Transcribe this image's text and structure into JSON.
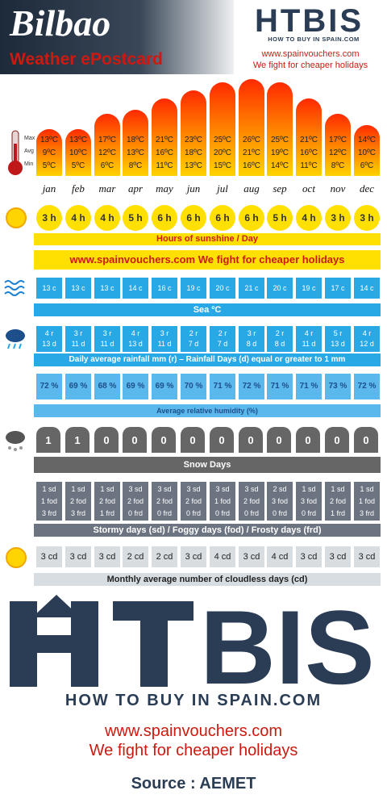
{
  "header": {
    "city": "Bilbao",
    "subtitle": "Weather ePostcard",
    "logo": "HTBIS",
    "logo_tagline": "HOW TO BUY IN SPAIN.COM",
    "url": "www.spainvouchers.com",
    "slogan": "We fight for cheaper holidays"
  },
  "temp_labels": {
    "max": "Max",
    "avg": "Avg",
    "min": "Min"
  },
  "chart_data": {
    "type": "table",
    "months": [
      "jan",
      "feb",
      "mar",
      "apr",
      "may",
      "jun",
      "jul",
      "aug",
      "sep",
      "oct",
      "nov",
      "dec"
    ],
    "temperature_c": {
      "max": [
        13,
        13,
        17,
        18,
        21,
        23,
        25,
        26,
        25,
        21,
        17,
        14
      ],
      "avg": [
        9,
        10,
        12,
        13,
        16,
        18,
        20,
        21,
        19,
        16,
        12,
        10
      ],
      "min": [
        5,
        5,
        6,
        8,
        11,
        13,
        15,
        16,
        14,
        11,
        8,
        6
      ],
      "max_text": [
        "13ºC",
        "13ºC",
        "17ºC",
        "18ºC",
        "21ºC",
        "23ºC",
        "25ºC",
        "26ºC",
        "25ºC",
        "21ºC",
        "17ºC",
        "14ºC"
      ],
      "avg_text": [
        "9ºC",
        "10ºC",
        "12ºC",
        "13ºC",
        "16ºC",
        "18ºC",
        "20ºC",
        "21ºC",
        "19ºC",
        "16ºC",
        "12ºC",
        "10ºC"
      ],
      "min_text": [
        "5ºC",
        "5ºC",
        "6ºC",
        "8ºC",
        "11ºC",
        "13ºC",
        "15ºC",
        "16ºC",
        "14ºC",
        "11ºC",
        "8ºC",
        "6ºC"
      ]
    },
    "sunshine_hours": [
      "3 h",
      "4 h",
      "4 h",
      "5 h",
      "6 h",
      "6 h",
      "6 h",
      "6 h",
      "5 h",
      "4 h",
      "3 h",
      "3 h"
    ],
    "sunshine_label": "Hours of sunshine / Day",
    "sea_temp": [
      "13 c",
      "13 c",
      "13 c",
      "14 c",
      "16 c",
      "19 c",
      "20 c",
      "21 c",
      "20 c",
      "19 c",
      "17 c",
      "14 c"
    ],
    "sea_label": "Sea ºC",
    "rainfall_mm": [
      "4 r",
      "3 r",
      "3 r",
      "4 r",
      "3 r",
      "2 r",
      "2 r",
      "3 r",
      "2 r",
      "4 r",
      "5 r",
      "4 r"
    ],
    "rain_days": [
      "13 d",
      "11 d",
      "11 d",
      "13 d",
      "11 d",
      "7 d",
      "7 d",
      "8 d",
      "8 d",
      "11 d",
      "13 d",
      "12 d"
    ],
    "rain_label": "Daily average rainfall mm (r) – Rainfall Days (d) equal or greater to 1 mm",
    "humidity": [
      "72 %",
      "69 %",
      "68 %",
      "69 %",
      "69 %",
      "70 %",
      "71 %",
      "72 %",
      "71 %",
      "71 %",
      "73 %",
      "72 %"
    ],
    "humidity_label": "Average relative humidity (%)",
    "snow_days": [
      "1",
      "1",
      "0",
      "0",
      "0",
      "0",
      "0",
      "0",
      "0",
      "0",
      "0",
      "0"
    ],
    "snow_label": "Snow Days",
    "stormy": [
      "1 sd",
      "1 sd",
      "1 sd",
      "3 sd",
      "3 sd",
      "3 sd",
      "3 sd",
      "3 sd",
      "2 sd",
      "1 sd",
      "1 sd",
      "1 sd"
    ],
    "foggy": [
      "1 fod",
      "2 fod",
      "2 fod",
      "2 fod",
      "2 fod",
      "2 fod",
      "1 fod",
      "2 fod",
      "3 fod",
      "3 fod",
      "2 fod",
      "1 fod"
    ],
    "frosty": [
      "3 frd",
      "3 frd",
      "1 frd",
      "0 frd",
      "0 frd",
      "0 frd",
      "0 frd",
      "0 frd",
      "0 frd",
      "0 frd",
      "1 frd",
      "3 frd"
    ],
    "storm_label": "Stormy days (sd)  /  Foggy days (fod)  / Frosty days (frd)",
    "cloudless": [
      "3 cd",
      "3 cd",
      "3 cd",
      "2 cd",
      "2 cd",
      "3 cd",
      "4 cd",
      "3 cd",
      "4 cd",
      "3 cd",
      "3 cd",
      "3 cd"
    ],
    "cloudless_label": "Monthly average number of cloudless days (cd)"
  },
  "promo_band": "www.spainvouchers.com We fight for cheaper holidays",
  "footer": {
    "logo": "HTBIS",
    "tagline": "HOW TO BUY IN SPAIN.COM",
    "url": "www.spainvouchers.com",
    "slogan": "We fight for cheaper holidays",
    "source": "Source : AEMET"
  },
  "colors": {
    "accent_red": "#cc1a10",
    "navy": "#2a3d55",
    "sea_blue": "#29a8e6",
    "sun_yellow": "#ffe000"
  },
  "icons": [
    "thermometer-icon",
    "sun-icon",
    "waves-icon",
    "rain-cloud-icon",
    "snow-cloud-icon",
    "sun-icon"
  ]
}
